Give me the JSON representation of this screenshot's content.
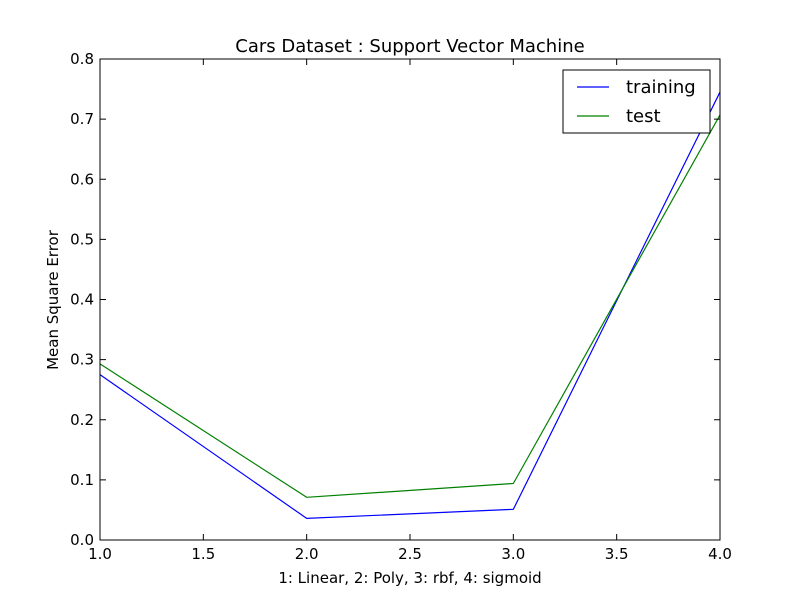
{
  "chart_data": {
    "type": "line",
    "title": "Cars Dataset : Support Vector Machine",
    "xlabel": "1: Linear, 2: Poly, 3: rbf, 4: sigmoid",
    "ylabel": "Mean Square Error",
    "xlim": [
      1.0,
      4.0
    ],
    "ylim": [
      0.0,
      0.8
    ],
    "xticks": [
      "1.0",
      "1.5",
      "2.0",
      "2.5",
      "3.0",
      "3.5",
      "4.0"
    ],
    "yticks": [
      "0.0",
      "0.1",
      "0.2",
      "0.3",
      "0.4",
      "0.5",
      "0.6",
      "0.7",
      "0.8"
    ],
    "grid": false,
    "legend_position": "top-right",
    "x": [
      1,
      2,
      3,
      4
    ],
    "series": [
      {
        "name": "training",
        "color": "#0000ff",
        "values": [
          0.275,
          0.036,
          0.051,
          0.745
        ]
      },
      {
        "name": "test",
        "color": "#008000",
        "values": [
          0.293,
          0.071,
          0.094,
          0.707
        ]
      }
    ]
  }
}
